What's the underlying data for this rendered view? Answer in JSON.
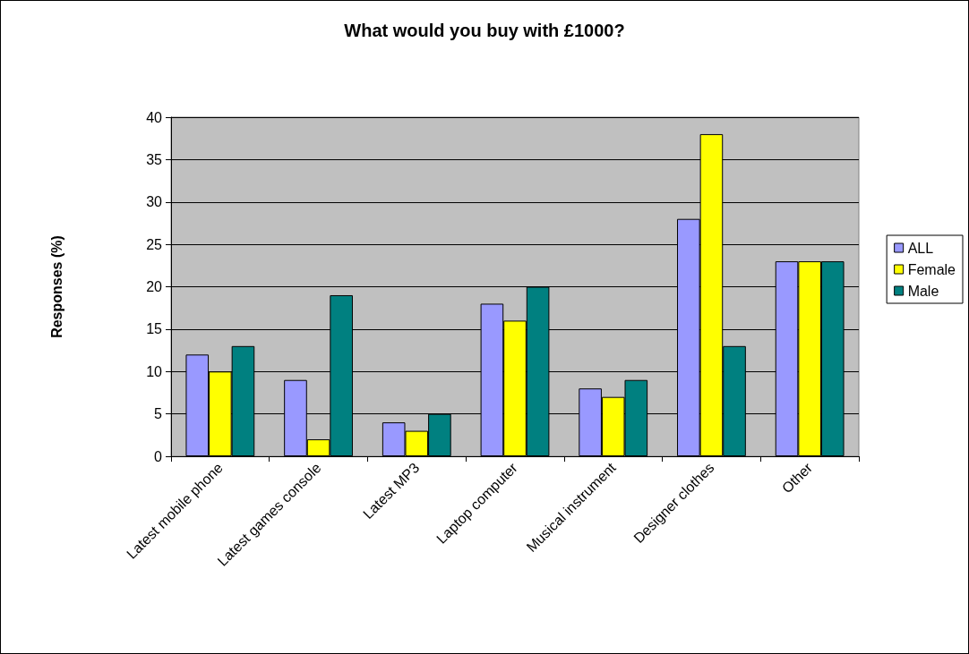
{
  "chart_data": {
    "type": "bar",
    "title": "What would you buy with £1000?",
    "ylabel": "Responses (%)",
    "categories": [
      "Latest mobile phone",
      "Latest games console",
      "Latest MP3",
      "Laptop computer",
      "Musical instrument",
      "Designer clothes",
      "Other"
    ],
    "series": [
      {
        "name": "ALL",
        "color": "#9999ff",
        "values": [
          12,
          9,
          4,
          18,
          8,
          28,
          23
        ]
      },
      {
        "name": "Female",
        "color": "#ffff00",
        "values": [
          10,
          2,
          3,
          16,
          7,
          38,
          23
        ]
      },
      {
        "name": "Male",
        "color": "#008080",
        "values": [
          13,
          19,
          5,
          20,
          9,
          13,
          23
        ]
      }
    ],
    "ylim": [
      0,
      40
    ],
    "yticks": [
      0,
      5,
      10,
      15,
      20,
      25,
      30,
      35,
      40
    ],
    "grid": "y",
    "legend": "right"
  }
}
